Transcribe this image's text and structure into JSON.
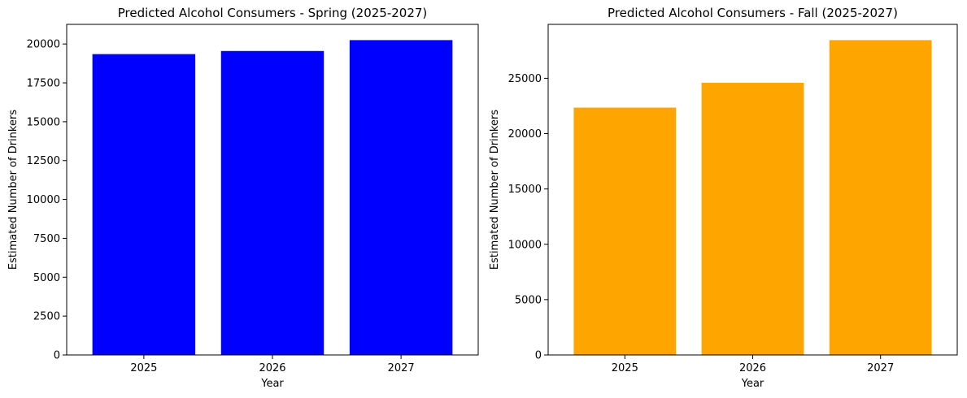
{
  "chart_data": [
    {
      "type": "bar",
      "title": "Predicted Alcohol Consumers - Spring (2025-2027)",
      "xlabel": "Year",
      "ylabel": "Estimated Number of Drinkers",
      "categories": [
        "2025",
        "2026",
        "2027"
      ],
      "values": [
        19350,
        19550,
        20250
      ],
      "color": "#0000ff",
      "ylim": [
        0,
        21263
      ],
      "yticks": [
        0,
        2500,
        5000,
        7500,
        10000,
        12500,
        15000,
        17500,
        20000
      ],
      "grid": false,
      "legend": "none"
    },
    {
      "type": "bar",
      "title": "Predicted Alcohol Consumers - Fall (2025-2027)",
      "xlabel": "Year",
      "ylabel": "Estimated Number of Drinkers",
      "categories": [
        "2025",
        "2026",
        "2027"
      ],
      "values": [
        22350,
        24600,
        28450
      ],
      "color": "#ffa500",
      "ylim": [
        0,
        29873
      ],
      "yticks": [
        0,
        5000,
        10000,
        15000,
        20000,
        25000
      ],
      "grid": false,
      "legend": "none"
    }
  ]
}
